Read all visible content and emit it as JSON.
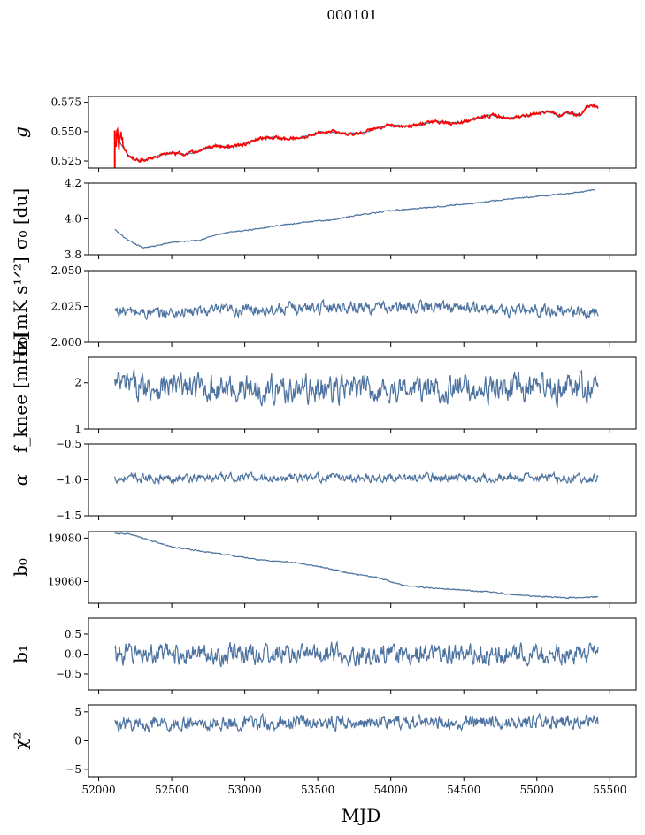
{
  "figure": {
    "suptitle": "000101",
    "xlabel": "MJD",
    "series_color": "#4c72a0",
    "overlay_color": "#ff0000",
    "xlim": [
      51930,
      55680
    ],
    "xticks": [
      52000,
      52500,
      53000,
      53500,
      54000,
      54500,
      55000,
      55500
    ],
    "xtick_labels": [
      "52000",
      "52500",
      "53000",
      "53500",
      "54000",
      "54500",
      "55000",
      "55500"
    ]
  },
  "chart_data": [
    {
      "type": "line",
      "id": "g",
      "ylabel": "g",
      "ylim": [
        0.519,
        0.58
      ],
      "yticks": [
        0.525,
        0.55,
        0.575
      ],
      "ytick_labels": [
        "0.525",
        "0.550",
        "0.575"
      ],
      "series": [
        {
          "name": "g",
          "color": "#4c72a0",
          "noise": 0.0006,
          "overlay": false,
          "x": [
            52110,
            52130,
            52160,
            52200,
            52250,
            52300,
            52400,
            52500,
            52600,
            52700,
            52800,
            52900,
            53000,
            53100,
            53200,
            53300,
            53400,
            53500,
            53600,
            53700,
            53800,
            53900,
            54000,
            54100,
            54200,
            54300,
            54400,
            54500,
            54600,
            54700,
            54800,
            54900,
            55000,
            55100,
            55150,
            55200,
            55300,
            55350,
            55420
          ],
          "y": [
            0.547,
            0.545,
            0.538,
            0.53,
            0.526,
            0.526,
            0.529,
            0.532,
            0.531,
            0.534,
            0.538,
            0.537,
            0.539,
            0.544,
            0.545,
            0.544,
            0.545,
            0.549,
            0.55,
            0.548,
            0.549,
            0.553,
            0.556,
            0.554,
            0.556,
            0.559,
            0.557,
            0.558,
            0.562,
            0.564,
            0.561,
            0.563,
            0.566,
            0.567,
            0.563,
            0.566,
            0.564,
            0.572,
            0.571
          ]
        },
        {
          "name": "g_model",
          "color": "#ff0000",
          "noise": 0.0012,
          "overlay": true,
          "x": [
            52110,
            52130,
            52160,
            52200,
            52250,
            52300,
            52400,
            52500,
            52600,
            52700,
            52800,
            52900,
            53000,
            53100,
            53200,
            53300,
            53400,
            53500,
            53600,
            53700,
            53800,
            53900,
            54000,
            54100,
            54200,
            54300,
            54400,
            54500,
            54600,
            54700,
            54800,
            54900,
            55000,
            55100,
            55150,
            55200,
            55300,
            55350,
            55420
          ],
          "y": [
            0.547,
            0.545,
            0.538,
            0.53,
            0.526,
            0.526,
            0.529,
            0.532,
            0.531,
            0.534,
            0.538,
            0.537,
            0.539,
            0.544,
            0.545,
            0.544,
            0.545,
            0.549,
            0.55,
            0.548,
            0.549,
            0.553,
            0.556,
            0.554,
            0.556,
            0.559,
            0.557,
            0.558,
            0.562,
            0.564,
            0.561,
            0.563,
            0.566,
            0.567,
            0.563,
            0.566,
            0.564,
            0.572,
            0.571
          ]
        }
      ]
    },
    {
      "type": "line",
      "id": "sigma0_du",
      "ylabel": "σ₀ [du]",
      "ylim": [
        3.8,
        4.2
      ],
      "yticks": [
        3.8,
        4.0,
        4.2
      ],
      "ytick_labels": [
        "3.8",
        "4.0",
        "4.2"
      ],
      "series": [
        {
          "name": "sigma0_du",
          "color": "#4c72a0",
          "noise": 0.003,
          "overlay": false,
          "x": [
            52110,
            52200,
            52300,
            52400,
            52500,
            52600,
            52700,
            52800,
            52900,
            53000,
            53200,
            53400,
            53600,
            53800,
            54000,
            54200,
            54400,
            54600,
            54800,
            55000,
            55200,
            55300,
            55400
          ],
          "y": [
            3.94,
            3.88,
            3.84,
            3.85,
            3.87,
            3.875,
            3.885,
            3.91,
            3.925,
            3.935,
            3.96,
            3.98,
            3.995,
            4.025,
            4.045,
            4.06,
            4.075,
            4.09,
            4.11,
            4.125,
            4.14,
            4.15,
            4.165
          ]
        }
      ]
    },
    {
      "type": "line",
      "id": "sigma0_mK",
      "ylabel": "σ₀[mK s¹ᐟ²]",
      "ylim": [
        2.0,
        2.05
      ],
      "yticks": [
        2.0,
        2.025,
        2.05
      ],
      "ytick_labels": [
        "2.000",
        "2.025",
        "2.050"
      ],
      "series": [
        {
          "name": "sigma0_mK",
          "color": "#4c72a0",
          "noise": 0.0035,
          "overlay": false,
          "x": [
            52110,
            52400,
            52800,
            53200,
            53600,
            54000,
            54400,
            54800,
            55200,
            55420
          ],
          "y": [
            2.022,
            2.02,
            2.022,
            2.023,
            2.025,
            2.024,
            2.025,
            2.022,
            2.022,
            2.02
          ]
        }
      ]
    },
    {
      "type": "line",
      "id": "fknee",
      "ylabel": "f_knee [mHz]",
      "ylim": [
        1.0,
        2.55
      ],
      "yticks": [
        1,
        2
      ],
      "ytick_labels": [
        "1",
        "2"
      ],
      "series": [
        {
          "name": "fknee",
          "color": "#4c72a0",
          "noise": 0.25,
          "overlay": false,
          "x": [
            52110,
            52800,
            53500,
            54200,
            54900,
            55420
          ],
          "y": [
            1.95,
            1.88,
            1.85,
            1.86,
            1.87,
            1.88
          ]
        }
      ]
    },
    {
      "type": "line",
      "id": "alpha",
      "ylabel": "α",
      "ylim": [
        -1.5,
        -0.5
      ],
      "yticks": [
        -1.5,
        -1.0,
        -0.5
      ],
      "ytick_labels": [
        "−1.5",
        "−1.0",
        "−0.5"
      ],
      "series": [
        {
          "name": "alpha",
          "color": "#4c72a0",
          "noise": 0.05,
          "overlay": false,
          "x": [
            52110,
            53000,
            54000,
            55000,
            55420
          ],
          "y": [
            -0.98,
            -0.97,
            -0.97,
            -0.97,
            -0.98
          ]
        }
      ]
    },
    {
      "type": "line",
      "id": "b0",
      "ylabel": "b₀",
      "ylim": [
        19050,
        19083
      ],
      "yticks": [
        19060,
        19080
      ],
      "ytick_labels": [
        "19060",
        "19080"
      ],
      "series": [
        {
          "name": "b0",
          "color": "#4c72a0",
          "noise": 0.25,
          "overlay": false,
          "x": [
            52110,
            52200,
            52300,
            52500,
            52700,
            52900,
            53100,
            53300,
            53500,
            53700,
            53900,
            54100,
            54300,
            54500,
            54700,
            54900,
            55100,
            55200,
            55420
          ],
          "y": [
            19082,
            19082,
            19080,
            19076,
            19074,
            19072,
            19070,
            19069,
            19067,
            19064,
            19062,
            19058,
            19057,
            19056,
            19055,
            19053.5,
            19053,
            19052.5,
            19053
          ]
        }
      ]
    },
    {
      "type": "line",
      "id": "b1",
      "ylabel": "b₁",
      "ylim": [
        -0.9,
        0.9
      ],
      "yticks": [
        -0.5,
        0.0,
        0.5
      ],
      "ytick_labels": [
        "−0.5",
        "0.0",
        "0.5"
      ],
      "series": [
        {
          "name": "b1",
          "color": "#4c72a0",
          "noise": 0.22,
          "overlay": false,
          "x": [
            52110,
            53000,
            54000,
            55000,
            55420
          ],
          "y": [
            0.0,
            0.0,
            0.0,
            0.0,
            0.0
          ]
        }
      ]
    },
    {
      "type": "line",
      "id": "chi2",
      "ylabel": "χ²",
      "ylim": [
        -6.2,
        6.2
      ],
      "yticks": [
        -5,
        0,
        5
      ],
      "ytick_labels": [
        "−5",
        "0",
        "5"
      ],
      "series": [
        {
          "name": "chi2",
          "color": "#4c72a0",
          "noise": 1.0,
          "overlay": false,
          "x": [
            52110,
            53000,
            54000,
            55000,
            55420
          ],
          "y": [
            2.8,
            3.0,
            3.2,
            3.3,
            3.5
          ]
        }
      ]
    }
  ]
}
